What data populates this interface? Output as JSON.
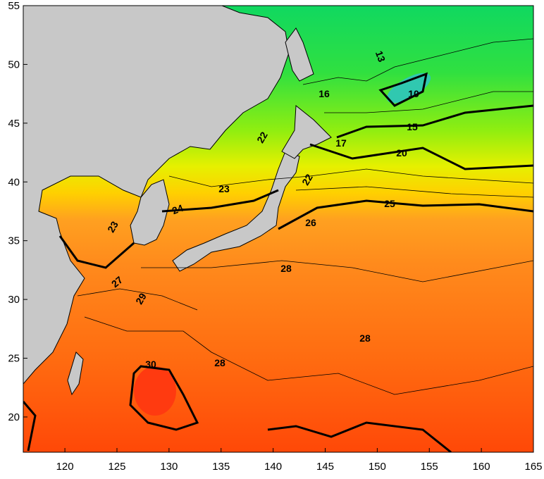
{
  "map": {
    "xlim": [
      116,
      165
    ],
    "ylim": [
      17,
      55
    ],
    "xticks": [
      120,
      125,
      130,
      135,
      140,
      145,
      150,
      155,
      160,
      165
    ],
    "yticks": [
      20,
      25,
      30,
      35,
      40,
      45,
      50,
      55
    ],
    "contour_labels": [
      "13",
      "10",
      "16",
      "15",
      "17",
      "20",
      "22",
      "22",
      "23",
      "24",
      "25",
      "26",
      "23",
      "27",
      "28",
      "29",
      "28",
      "28",
      "30"
    ]
  }
}
